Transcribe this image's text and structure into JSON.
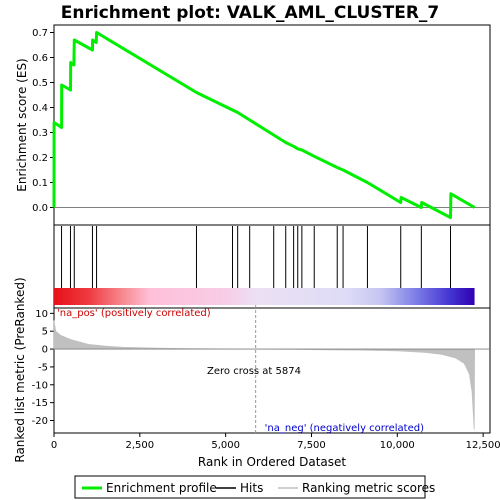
{
  "chart_data": {
    "type": "line",
    "title": "Enrichment plot: VALK_AML_CLUSTER_7",
    "top_panel": {
      "ylabel": "Enrichment score (ES)",
      "ylim": [
        -0.07,
        0.73
      ],
      "yticks": [
        0.0,
        0.1,
        0.2,
        0.3,
        0.4,
        0.5,
        0.6,
        0.7
      ],
      "ytick_labels": [
        "0.0",
        "0.1",
        "0.2",
        "0.3",
        "0.4",
        "0.5",
        "0.6",
        "0.7"
      ],
      "series": [
        {
          "name": "Enrichment profile",
          "color": "#00ee00",
          "points": [
            [
              0,
              0.0
            ],
            [
              2,
              0.34
            ],
            [
              220,
              0.32
            ],
            [
              225,
              0.49
            ],
            [
              480,
              0.47
            ],
            [
              485,
              0.58
            ],
            [
              580,
              0.57
            ],
            [
              590,
              0.67
            ],
            [
              1120,
              0.63
            ],
            [
              1125,
              0.67
            ],
            [
              1230,
              0.66
            ],
            [
              1240,
              0.7
            ],
            [
              4150,
              0.46
            ],
            [
              5200,
              0.39
            ],
            [
              5350,
              0.38
            ],
            [
              5700,
              0.35
            ],
            [
              6400,
              0.29
            ],
            [
              6750,
              0.26
            ],
            [
              6980,
              0.245
            ],
            [
              7100,
              0.235
            ],
            [
              7220,
              0.23
            ],
            [
              7580,
              0.205
            ],
            [
              8250,
              0.16
            ],
            [
              8420,
              0.15
            ],
            [
              9130,
              0.1
            ],
            [
              10100,
              0.02
            ],
            [
              10110,
              0.04
            ],
            [
              10700,
              0.0
            ],
            [
              10710,
              0.02
            ],
            [
              11550,
              -0.04
            ],
            [
              11560,
              0.055
            ],
            [
              12250,
              0.0
            ]
          ]
        }
      ]
    },
    "hits": {
      "name": "Hits",
      "color": "#000000",
      "positions": [
        220,
        480,
        590,
        1120,
        1240,
        4150,
        5200,
        5350,
        5700,
        6400,
        6750,
        6980,
        7100,
        7220,
        7580,
        8250,
        8420,
        9130,
        10100,
        10700,
        11550
      ]
    },
    "rank_bar": {
      "stops": [
        {
          "rank": 0,
          "color": "#e8101a"
        },
        {
          "rank": 1000,
          "color": "#ee3a40"
        },
        {
          "rank": 2000,
          "color": "#f6898f"
        },
        {
          "rank": 2800,
          "color": "#ffc0d8"
        },
        {
          "rank": 5000,
          "color": "#f8cce6"
        },
        {
          "rank": 5874,
          "color": "#ece0f4"
        },
        {
          "rank": 8500,
          "color": "#dedcf6"
        },
        {
          "rank": 9500,
          "color": "#c6c6f2"
        },
        {
          "rank": 10500,
          "color": "#8080e8"
        },
        {
          "rank": 11600,
          "color": "#4030d0"
        },
        {
          "rank": 12250,
          "color": "#3000b0"
        }
      ]
    },
    "bottom_panel": {
      "ylabel": "Ranked list metric (PreRanked)",
      "xlabel": "Rank in Ordered Dataset",
      "xlim": [
        0,
        12700
      ],
      "ylim": [
        -23.5,
        11.5
      ],
      "xticks": [
        0,
        2500,
        5000,
        7500,
        10000,
        12500
      ],
      "xtick_labels": [
        "0",
        "2,500",
        "5,000",
        "7,500",
        "10,000",
        "12,500"
      ],
      "yticks": [
        10,
        5,
        0,
        -5,
        -10,
        -15,
        -20
      ],
      "ytick_labels": [
        "10",
        "5",
        "0",
        "-5",
        "-10",
        "-15",
        "-20"
      ],
      "series": [
        {
          "name": "Ranking metric scores",
          "color": "#c0c0c0",
          "points": [
            [
              0,
              8.0
            ],
            [
              50,
              5.0
            ],
            [
              200,
              3.8
            ],
            [
              500,
              2.6
            ],
            [
              1000,
              1.3
            ],
            [
              1500,
              0.8
            ],
            [
              2000,
              0.5
            ],
            [
              3000,
              0.25
            ],
            [
              4000,
              0.12
            ],
            [
              5000,
              0.05
            ],
            [
              5874,
              0.0
            ],
            [
              7000,
              -0.1
            ],
            [
              8000,
              -0.2
            ],
            [
              9000,
              -0.3
            ],
            [
              10000,
              -0.5
            ],
            [
              10800,
              -0.9
            ],
            [
              11300,
              -1.5
            ],
            [
              11700,
              -2.5
            ],
            [
              11950,
              -4.0
            ],
            [
              12100,
              -7.0
            ],
            [
              12180,
              -12.0
            ],
            [
              12240,
              -22.5
            ],
            [
              12250,
              0
            ]
          ]
        }
      ],
      "annotations": {
        "zero_cross_rank": 5874,
        "zero_cross_text": "Zero cross at 5874",
        "pos_text": "'na_pos' (positively correlated)",
        "neg_text": "'na_neg' (negatively correlated)",
        "pos_color": "#cc0000",
        "neg_color": "#0000cc"
      }
    },
    "legend": {
      "items": [
        {
          "label": "Enrichment profile",
          "color": "#00ee00"
        },
        {
          "label": "Hits",
          "color": "#000000"
        },
        {
          "label": "Ranking metric scores",
          "color": "#c0c0c0"
        }
      ]
    }
  }
}
